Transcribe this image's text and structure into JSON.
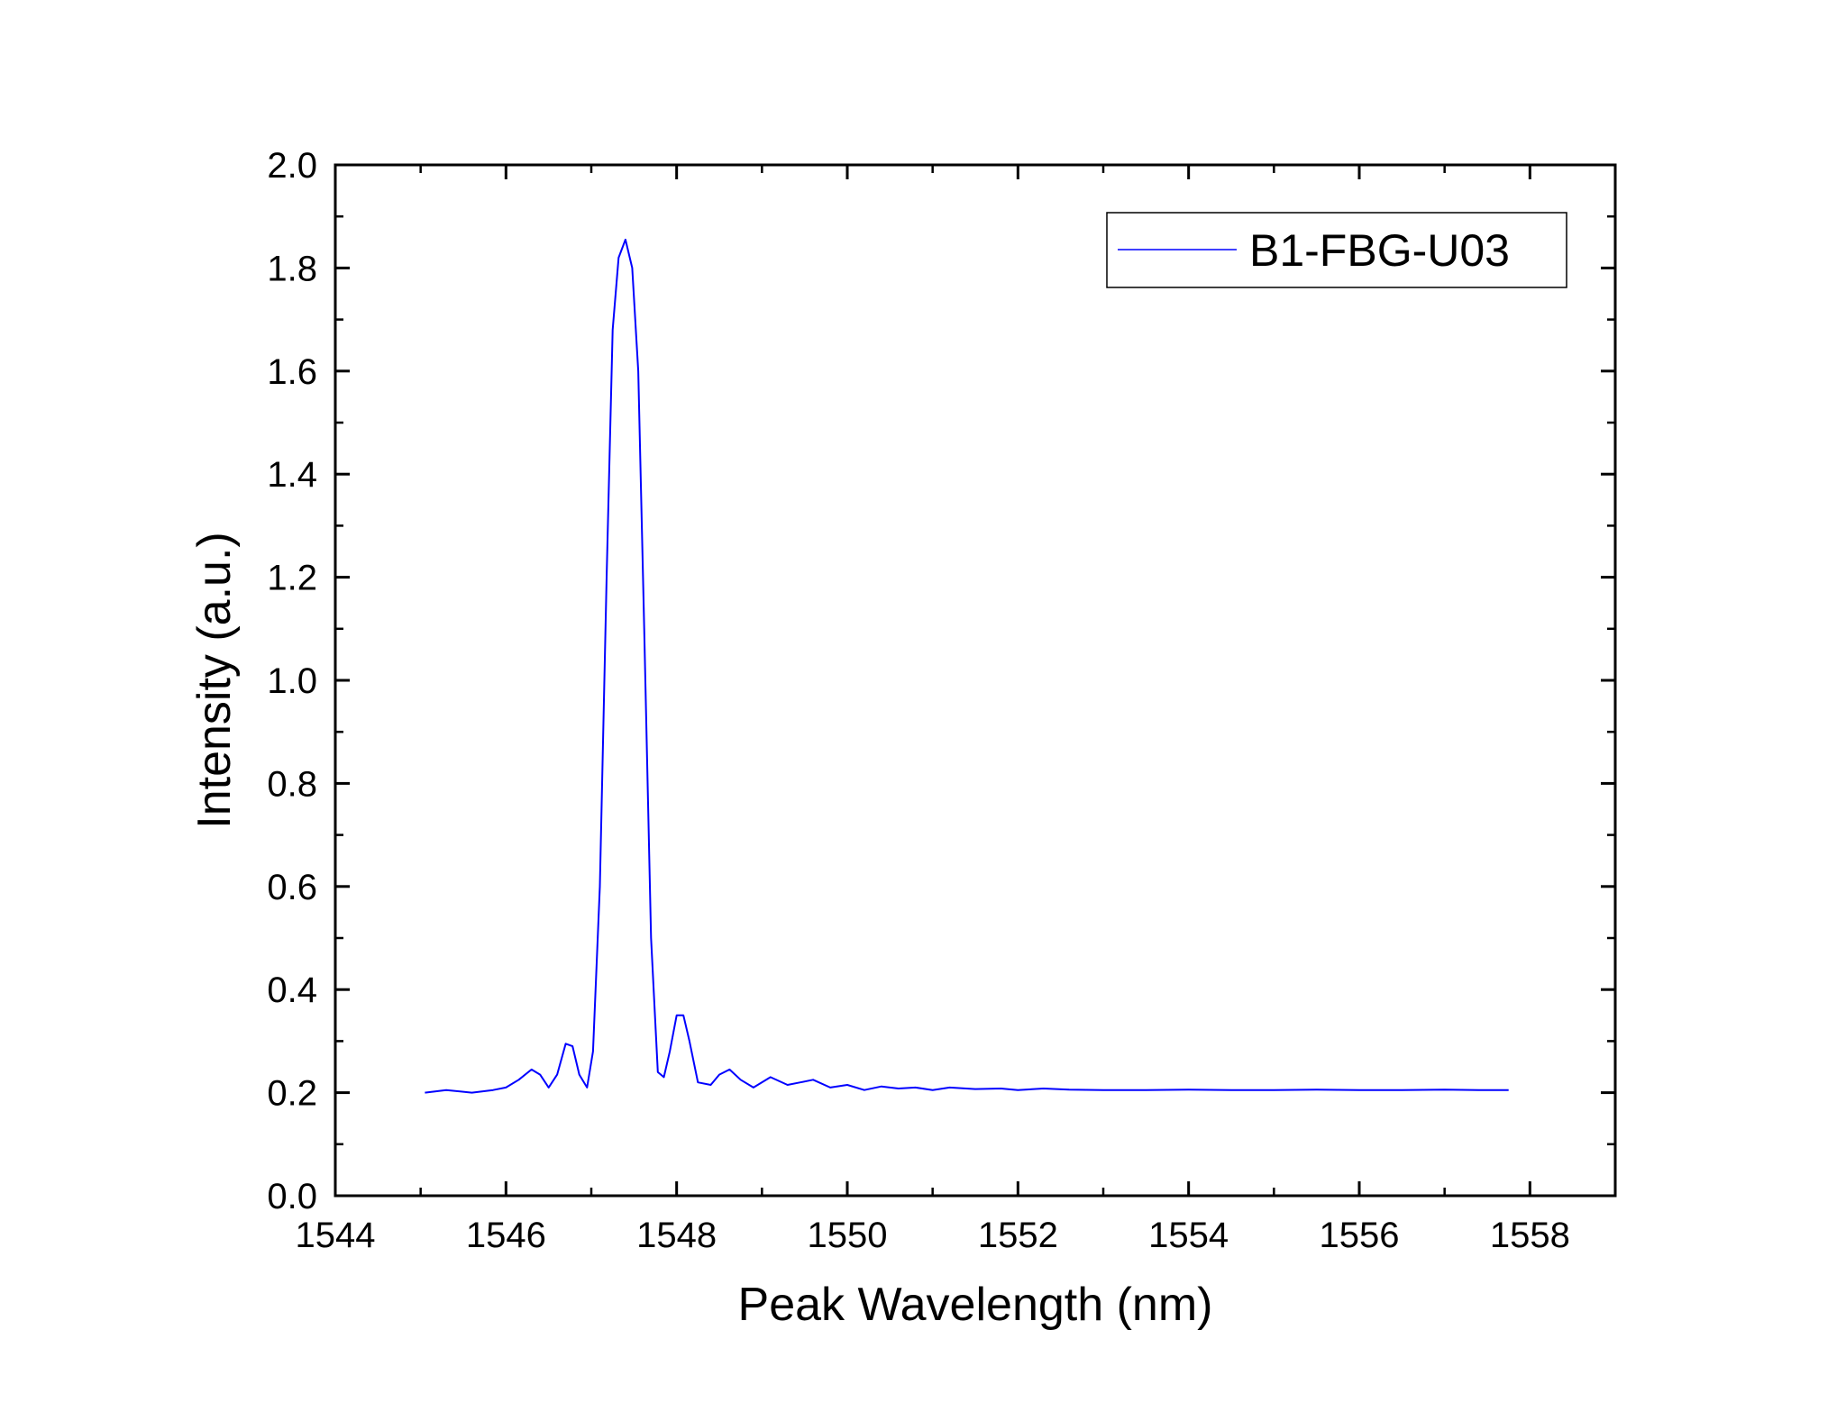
{
  "chart_data": {
    "type": "line",
    "title": "",
    "xlabel": "Peak Wavelength (nm)",
    "ylabel": "Intensity (a.u.)",
    "xlim": [
      1544,
      1559
    ],
    "ylim": [
      0,
      2.0
    ],
    "x_ticks": [
      1544,
      1546,
      1548,
      1550,
      1552,
      1554,
      1556,
      1558
    ],
    "y_ticks": [
      0.0,
      0.2,
      0.4,
      0.6,
      0.8,
      1.0,
      1.2,
      1.4,
      1.6,
      1.8,
      2.0
    ],
    "x_tick_labels": [
      "1544",
      "1546",
      "1548",
      "1550",
      "1552",
      "1554",
      "1556",
      "1558"
    ],
    "y_tick_labels": [
      "0.0",
      "0.2",
      "0.4",
      "0.6",
      "0.8",
      "1.0",
      "1.2",
      "1.4",
      "1.6",
      "1.8",
      "2.0"
    ],
    "grid": false,
    "legend_position": "top-right",
    "series": [
      {
        "name": "B1-FBG-U03",
        "color": "#0000ff",
        "x": [
          1545.05,
          1545.3,
          1545.6,
          1545.85,
          1546.0,
          1546.15,
          1546.3,
          1546.4,
          1546.5,
          1546.6,
          1546.7,
          1546.78,
          1546.86,
          1546.95,
          1547.02,
          1547.1,
          1547.18,
          1547.25,
          1547.32,
          1547.4,
          1547.48,
          1547.55,
          1547.62,
          1547.7,
          1547.78,
          1547.85,
          1547.92,
          1548.0,
          1548.08,
          1548.15,
          1548.25,
          1548.4,
          1548.5,
          1548.62,
          1548.75,
          1548.9,
          1549.1,
          1549.3,
          1549.45,
          1549.6,
          1549.8,
          1550.0,
          1550.2,
          1550.4,
          1550.6,
          1550.8,
          1551.0,
          1551.2,
          1551.5,
          1551.8,
          1552.0,
          1552.3,
          1552.6,
          1553.0,
          1553.5,
          1554.0,
          1554.5,
          1555.0,
          1555.5,
          1556.0,
          1556.5,
          1557.0,
          1557.4,
          1557.75
        ],
        "y": [
          0.2,
          0.205,
          0.2,
          0.205,
          0.21,
          0.225,
          0.245,
          0.235,
          0.21,
          0.235,
          0.295,
          0.29,
          0.235,
          0.21,
          0.28,
          0.6,
          1.2,
          1.68,
          1.82,
          1.855,
          1.8,
          1.6,
          1.1,
          0.5,
          0.24,
          0.23,
          0.28,
          0.35,
          0.35,
          0.3,
          0.22,
          0.215,
          0.235,
          0.245,
          0.225,
          0.21,
          0.23,
          0.215,
          0.22,
          0.225,
          0.21,
          0.215,
          0.205,
          0.212,
          0.208,
          0.21,
          0.205,
          0.21,
          0.207,
          0.208,
          0.205,
          0.208,
          0.206,
          0.205,
          0.205,
          0.206,
          0.205,
          0.205,
          0.206,
          0.205,
          0.205,
          0.206,
          0.205,
          0.205
        ]
      }
    ]
  }
}
